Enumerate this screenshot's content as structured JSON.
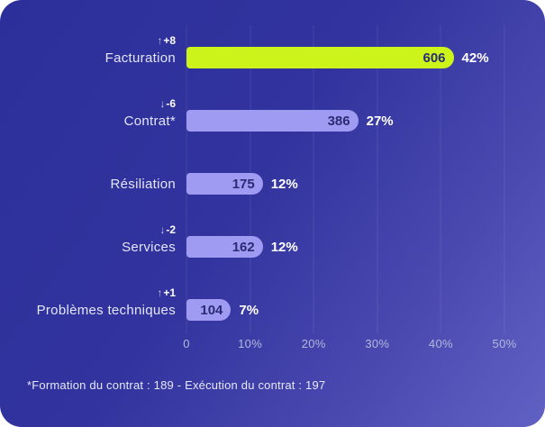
{
  "chart_data": {
    "type": "bar",
    "orientation": "horizontal",
    "xlim": [
      0,
      50
    ],
    "x_unit": "%",
    "grid": true,
    "xticks": [
      "0",
      "10%",
      "20%",
      "30%",
      "40%",
      "50%"
    ],
    "categories": [
      "Facturation",
      "Contrat*",
      "Résiliation",
      "Services",
      "Problèmes techniques"
    ],
    "series": [
      {
        "name": "count",
        "values": [
          606,
          386,
          175,
          162,
          104
        ]
      },
      {
        "name": "percent",
        "values": [
          42,
          27,
          12,
          12,
          7
        ]
      }
    ],
    "rows": [
      {
        "label": "Facturation",
        "value": "606",
        "pct": 42,
        "pct_label": "42%",
        "delta_arrow": "↑",
        "delta": "+8",
        "highlight": true
      },
      {
        "label": "Contrat*",
        "value": "386",
        "pct": 27,
        "pct_label": "27%",
        "delta_arrow": "↓",
        "delta": "-6",
        "highlight": false
      },
      {
        "label": "Résiliation",
        "value": "175",
        "pct": 12,
        "pct_label": "12%",
        "highlight": false
      },
      {
        "label": "Services",
        "value": "162",
        "pct": 12,
        "pct_label": "12%",
        "delta_arrow": "↓",
        "delta": "-2",
        "highlight": false
      },
      {
        "label": "Problèmes techniques",
        "value": "104",
        "pct": 7,
        "pct_label": "7%",
        "delta_arrow": "↑",
        "delta": "+1",
        "highlight": false
      }
    ],
    "footnote": "*Formation du contrat : 189 - Exécution du contrat : 197",
    "colors": {
      "highlight_bar": "#cdf41a",
      "bar": "#a09bf2",
      "bar_value_text": "#2a2b74",
      "percent_text": "#ffffff",
      "label_text": "#e4e6f7",
      "axis_text": "#b4b8dd",
      "badge_arrow": "#c7cbe8",
      "badge_text": "#ffffff",
      "bg_gradient_from": "#2c2f9a",
      "bg_gradient_to": "#6161c4"
    }
  }
}
